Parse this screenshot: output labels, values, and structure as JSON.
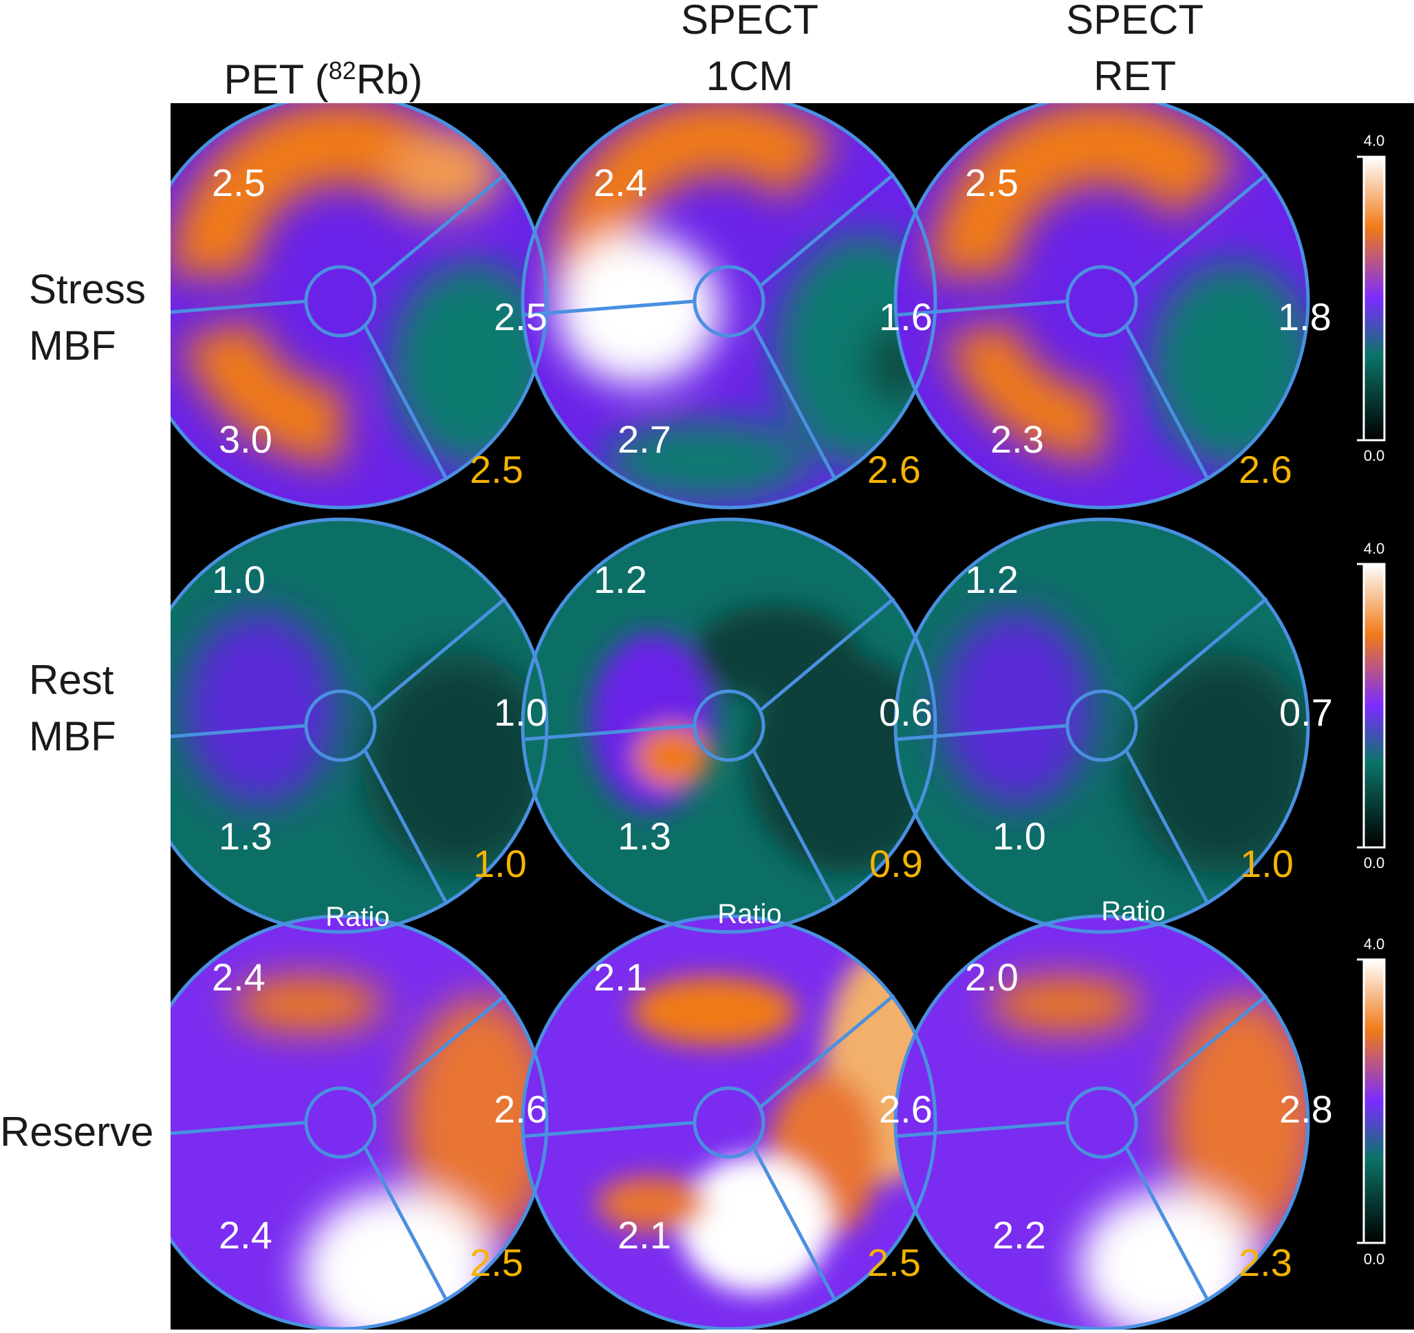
{
  "columns": [
    {
      "title_line1": "PET (",
      "title_sup": "82",
      "title_line1_end": "Rb)"
    },
    {
      "title_line1": "SPECT",
      "title_line2": "1CM"
    },
    {
      "title_line1": "SPECT",
      "title_line2": "RET"
    }
  ],
  "rows": [
    {
      "label_line1": "Stress",
      "label_line2": "MBF"
    },
    {
      "label_line1": "Rest",
      "label_line2": "MBF"
    },
    {
      "label_line1": "Reserve"
    }
  ],
  "ratio_label": "Ratio",
  "colorbars": [
    {
      "max": "4.0",
      "mid": "",
      "min": "0.0"
    },
    {
      "max": "4.0",
      "mid": "",
      "min": "0.0"
    },
    {
      "max": "4.0",
      "mid": "",
      "min": "0.0"
    }
  ],
  "maps": [
    [
      {
        "lad": "2.5",
        "lcx": "2.5",
        "rca": "3.0",
        "global": "2.5"
      },
      {
        "lad": "2.4",
        "lcx": "1.6",
        "rca": "2.7",
        "global": "2.6"
      },
      {
        "lad": "2.5",
        "lcx": "1.8",
        "rca": "2.3",
        "global": "2.6"
      }
    ],
    [
      {
        "lad": "1.0",
        "lcx": "1.0",
        "rca": "1.3",
        "global": "1.0"
      },
      {
        "lad": "1.2",
        "lcx": "0.6",
        "rca": "1.3",
        "global": "0.9"
      },
      {
        "lad": "1.2",
        "lcx": "0.7",
        "rca": "1.0",
        "global": "1.0"
      }
    ],
    [
      {
        "lad": "2.4",
        "lcx": "2.6",
        "rca": "2.4",
        "global": "2.5"
      },
      {
        "lad": "2.1",
        "lcx": "2.6",
        "rca": "2.1",
        "global": "2.5"
      },
      {
        "lad": "2.0",
        "lcx": "2.8",
        "rca": "2.2",
        "global": "2.3"
      }
    ]
  ],
  "colors": {
    "value_text": "#ffffff",
    "global_text": "#f5b400",
    "outline": "#4a90e0",
    "background": "#000000"
  }
}
